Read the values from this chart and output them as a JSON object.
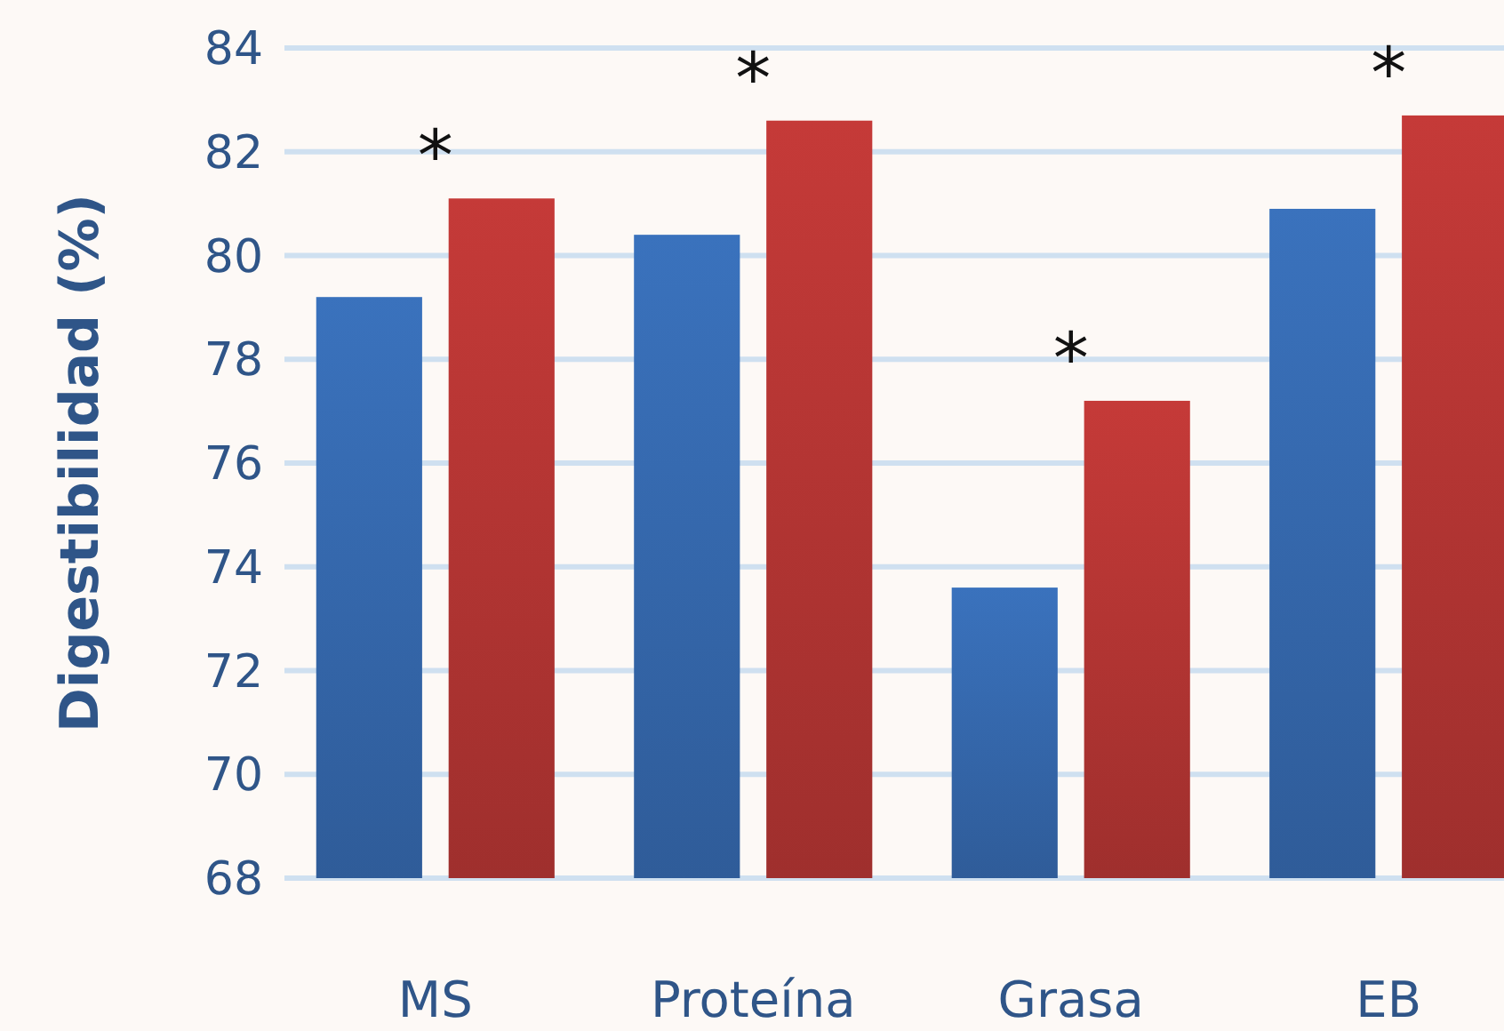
{
  "chart_data": {
    "type": "bar",
    "ylabel": "Digestibilidad (%)",
    "categories": [
      "MS",
      "Proteína",
      "Grasa",
      "EB"
    ],
    "series": [
      {
        "color": "#3a72bd",
        "values": [
          79.2,
          80.4,
          73.6,
          80.9
        ]
      },
      {
        "color": "#c53a38",
        "values": [
          81.1,
          82.6,
          77.2,
          82.7
        ]
      }
    ],
    "ylim": [
      68,
      84
    ],
    "yticks": [
      68,
      70,
      72,
      74,
      76,
      78,
      80,
      82,
      84
    ],
    "grid": "y",
    "annotations": [
      "*",
      "*",
      "*",
      "*"
    ]
  }
}
